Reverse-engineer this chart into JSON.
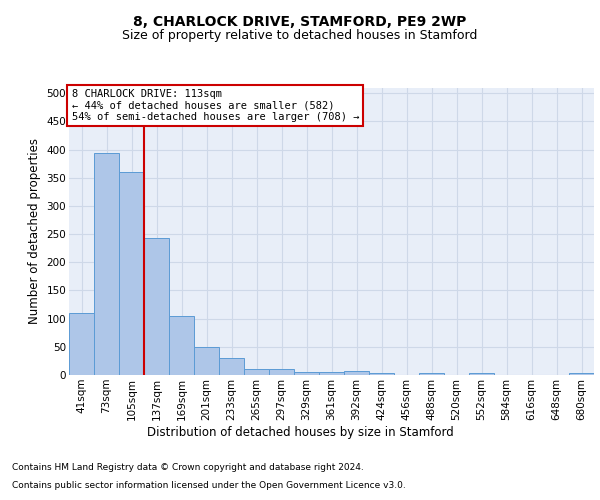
{
  "title_line1": "8, CHARLOCK DRIVE, STAMFORD, PE9 2WP",
  "title_line2": "Size of property relative to detached houses in Stamford",
  "xlabel": "Distribution of detached houses by size in Stamford",
  "ylabel": "Number of detached properties",
  "categories": [
    "41sqm",
    "73sqm",
    "105sqm",
    "137sqm",
    "169sqm",
    "201sqm",
    "233sqm",
    "265sqm",
    "297sqm",
    "329sqm",
    "361sqm",
    "392sqm",
    "424sqm",
    "456sqm",
    "488sqm",
    "520sqm",
    "552sqm",
    "584sqm",
    "616sqm",
    "648sqm",
    "680sqm"
  ],
  "values": [
    110,
    393,
    360,
    243,
    105,
    50,
    30,
    10,
    10,
    6,
    6,
    7,
    3,
    0,
    4,
    0,
    4,
    0,
    0,
    0,
    4
  ],
  "bar_color": "#aec6e8",
  "bar_edge_color": "#5b9bd5",
  "vline_x_idx": 2,
  "vline_color": "#cc0000",
  "annotation_text": "8 CHARLOCK DRIVE: 113sqm\n← 44% of detached houses are smaller (582)\n54% of semi-detached houses are larger (708) →",
  "annotation_box_color": "#ffffff",
  "annotation_box_edge": "#cc0000",
  "ylim": [
    0,
    510
  ],
  "yticks": [
    0,
    50,
    100,
    150,
    200,
    250,
    300,
    350,
    400,
    450,
    500
  ],
  "grid_color": "#ced8e8",
  "background_color": "#e8eef8",
  "footer_line1": "Contains HM Land Registry data © Crown copyright and database right 2024.",
  "footer_line2": "Contains public sector information licensed under the Open Government Licence v3.0.",
  "title_fontsize": 10,
  "subtitle_fontsize": 9,
  "axis_label_fontsize": 8.5,
  "tick_fontsize": 7.5,
  "annotation_fontsize": 7.5,
  "footer_fontsize": 6.5
}
